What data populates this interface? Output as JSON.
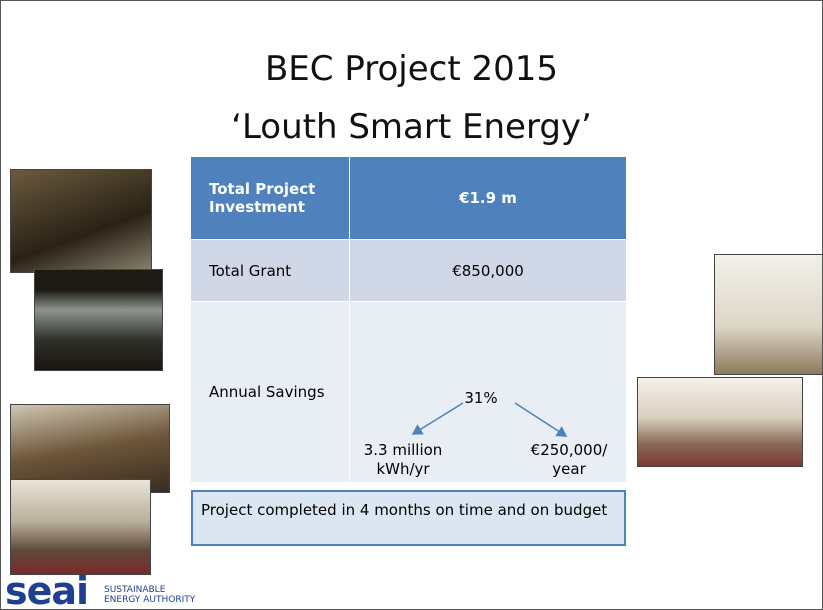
{
  "title": {
    "line1": "BEC Project 2015",
    "line2": "‘Louth Smart Energy’"
  },
  "table": {
    "rows": [
      [
        "Total Project Investment",
        "€1.9 m"
      ],
      [
        "Total Grant",
        "€850,000"
      ],
      [
        "Annual Savings",
        ""
      ]
    ]
  },
  "savings": {
    "percent": "31%",
    "energy": "3.3 million kWh/yr",
    "money": "€250,000/ year"
  },
  "note": "Project completed in 4 months on time and on budget",
  "logo": {
    "mark": "seai",
    "line1": "SUSTAINABLE",
    "line2": "ENERGY AUTHORITY"
  }
}
